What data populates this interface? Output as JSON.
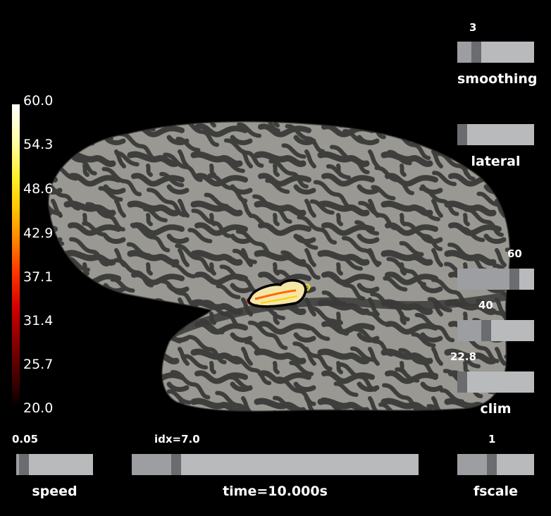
{
  "colorbar": {
    "ticks": [
      "60.0",
      "54.3",
      "48.6",
      "42.9",
      "37.1",
      "31.4",
      "25.7",
      "20.0"
    ]
  },
  "sliders": {
    "smoothing": {
      "label": "smoothing",
      "value": "3"
    },
    "lateral": {
      "label": "lateral"
    },
    "clim_high": {
      "value": "60"
    },
    "clim_mid": {
      "value": "40"
    },
    "clim_low": {
      "value": "22.8"
    },
    "clim": {
      "label": "clim"
    },
    "speed": {
      "label": "speed",
      "value": "0.05"
    },
    "time": {
      "label": "time=10.000s",
      "value": "idx=7.0"
    },
    "fscale": {
      "label": "fscale",
      "value": "1"
    }
  },
  "colors": {
    "background": "#000000",
    "slider_track": "#b9babc",
    "slider_handle": "#6a6c70",
    "brain_gyri": "#9a9893",
    "brain_sulci": "#3e3e3c"
  }
}
